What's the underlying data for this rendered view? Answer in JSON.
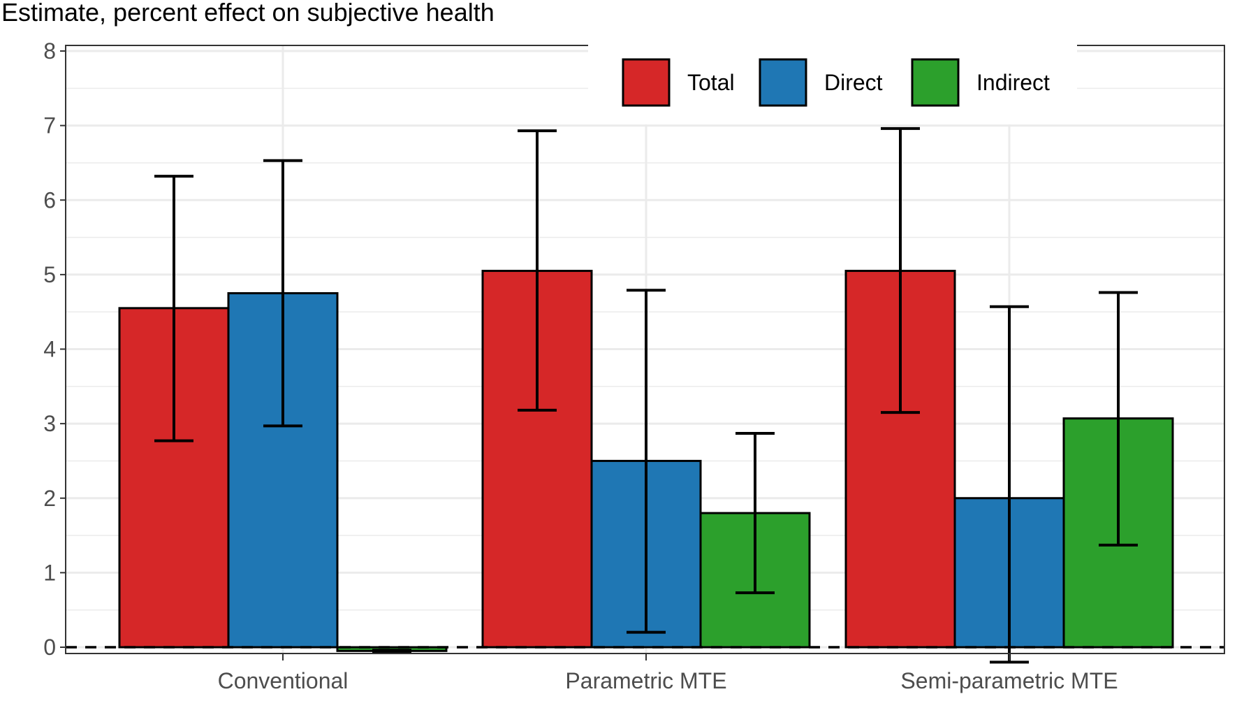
{
  "chart_data": {
    "type": "bar",
    "ylabel": "Estimate, percent effect on subjective health",
    "categories": [
      "Conventional",
      "Parametric MTE",
      "Semi-parametric MTE"
    ],
    "ylim": [
      0,
      8
    ],
    "yticks": [
      0,
      1,
      2,
      3,
      4,
      5,
      6,
      7,
      8
    ],
    "grid": true,
    "reference_line": 0,
    "legend_position": "top-center",
    "series": [
      {
        "name": "Total",
        "color": "#d62728",
        "values": [
          4.55,
          5.05,
          5.05
        ],
        "ci_low": [
          2.77,
          3.18,
          3.15
        ],
        "ci_high": [
          6.32,
          6.93,
          6.96
        ]
      },
      {
        "name": "Direct",
        "color": "#1f77b4",
        "values": [
          4.75,
          2.5,
          2.0
        ],
        "ci_low": [
          2.97,
          0.2,
          -0.2
        ],
        "ci_high": [
          6.53,
          4.79,
          4.57
        ]
      },
      {
        "name": "Indirect",
        "color": "#2ca02c",
        "values": [
          -0.05,
          1.8,
          3.07
        ],
        "ci_low": [
          -0.06,
          0.73,
          1.37
        ],
        "ci_high": [
          -0.04,
          2.87,
          4.76
        ]
      }
    ]
  }
}
